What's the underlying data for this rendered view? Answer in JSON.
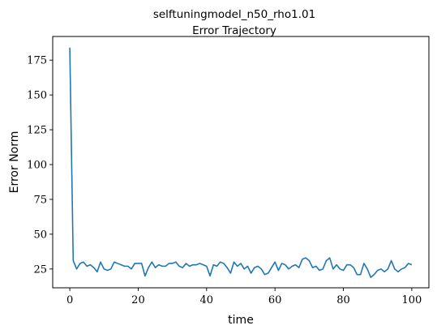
{
  "chart_data": {
    "type": "line",
    "title": "selftuningmodel_n50_rho1.01",
    "subtitle": "Error Trajectory",
    "xlabel": "time",
    "ylabel": "Error Norm",
    "xlim": [
      -5,
      105
    ],
    "ylim": [
      11.5,
      192
    ],
    "xticks": [
      0,
      20,
      40,
      60,
      80,
      100
    ],
    "yticks": [
      25,
      50,
      75,
      100,
      125,
      150,
      175
    ],
    "grid": false,
    "line_color": "#1f77b4",
    "series": [
      {
        "x": [
          0,
          1,
          2,
          3,
          4,
          5,
          6,
          7,
          8,
          9,
          10,
          11,
          12,
          13,
          14,
          15,
          16,
          17,
          18,
          19,
          20,
          21,
          22,
          23,
          24,
          25,
          26,
          27,
          28,
          29,
          30,
          31,
          32,
          33,
          34,
          35,
          36,
          37,
          38,
          39,
          40,
          41,
          42,
          43,
          44,
          45,
          46,
          47,
          48,
          49,
          50,
          51,
          52,
          53,
          54,
          55,
          56,
          57,
          58,
          59,
          60,
          61,
          62,
          63,
          64,
          65,
          66,
          67,
          68,
          69,
          70,
          71,
          72,
          73,
          74,
          75,
          76,
          77,
          78,
          79,
          80,
          81,
          82,
          83,
          84,
          85,
          86,
          87,
          88,
          89,
          90,
          91,
          92,
          93,
          94,
          95,
          96,
          97,
          98,
          99,
          100
        ],
        "values": [
          184,
          31,
          25,
          29,
          30,
          27,
          28,
          26,
          23,
          30,
          25,
          24,
          25,
          30,
          29,
          28,
          27,
          27,
          25,
          29,
          29,
          29,
          20,
          26,
          30,
          26,
          28,
          27,
          27,
          29,
          29,
          30,
          27,
          26,
          29,
          27,
          28,
          28,
          29,
          28,
          27,
          20,
          28,
          27,
          30,
          29,
          26,
          22,
          30,
          27,
          29,
          25,
          27,
          22,
          26,
          27,
          25,
          21,
          22,
          26,
          30,
          24,
          29,
          28,
          25,
          27,
          28,
          26,
          32,
          33,
          31,
          26,
          27,
          24,
          25,
          31,
          33,
          25,
          28,
          25,
          24,
          28,
          28,
          26,
          21,
          21,
          29,
          25,
          19,
          21,
          24,
          25,
          23,
          25,
          31,
          25,
          23,
          25,
          26,
          29,
          28
        ]
      }
    ]
  }
}
